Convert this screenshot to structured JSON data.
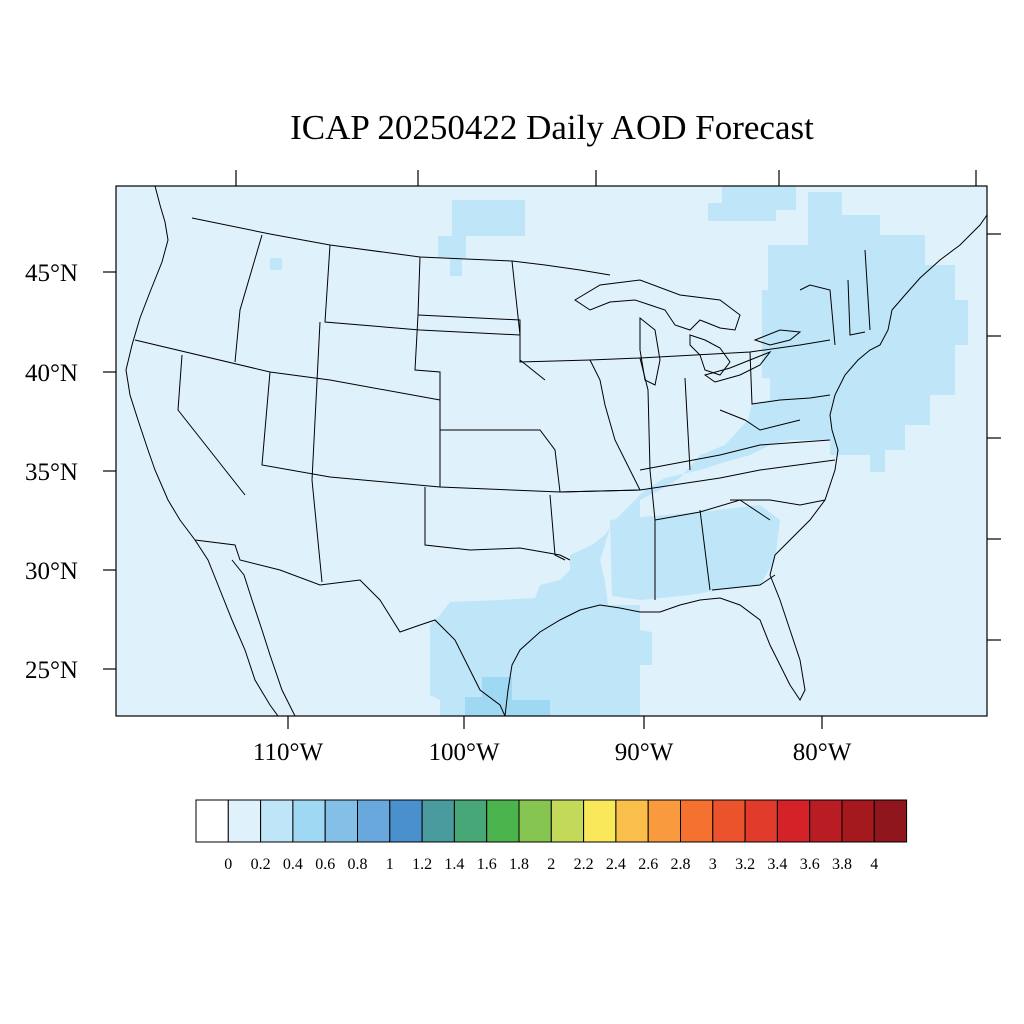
{
  "title": "ICAP 20250422 Daily AOD Forecast",
  "map": {
    "projection": "cylindrical equidistant",
    "lon_range": [
      -119.5,
      -70.5
    ],
    "lat_range": [
      22.5,
      49.5
    ],
    "lat_labels": [
      "25°N",
      "30°N",
      "35°N",
      "40°N",
      "45°N"
    ],
    "lon_labels": [
      "110°W",
      "100°W",
      "90°W",
      "80°W"
    ],
    "background_value_color": "#dff1fb",
    "aod_0_2_to_0_4_color": "#bfe5f8",
    "aod_0_4_to_0_6_color": "#9ed8f3"
  },
  "colorbar": {
    "labels": [
      "0",
      "0.2",
      "0.4",
      "0.6",
      "0.8",
      "1",
      "1.2",
      "1.4",
      "1.6",
      "1.8",
      "2",
      "2.2",
      "2.4",
      "2.6",
      "2.8",
      "3",
      "3.2",
      "3.4",
      "3.6",
      "3.8",
      "4"
    ],
    "colors": [
      "#ffffff",
      "#dff1fb",
      "#bfe5f8",
      "#9ed8f3",
      "#83bfe6",
      "#68a8dc",
      "#4a90cd",
      "#4a9b9e",
      "#48a776",
      "#4bb44c",
      "#85c550",
      "#c3d95a",
      "#f8e85a",
      "#f9bf4a",
      "#f89a3d",
      "#f57130",
      "#ea532c",
      "#e13c2b",
      "#d52128",
      "#b81d24",
      "#a4191d",
      "#8e161c"
    ]
  }
}
